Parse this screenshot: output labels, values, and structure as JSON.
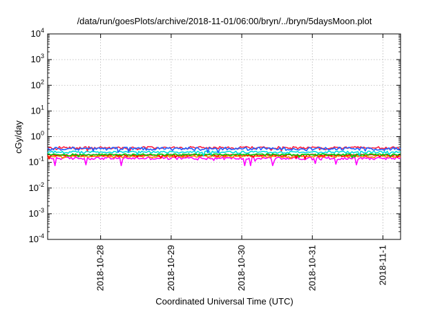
{
  "chart_data": {
    "type": "line",
    "title": "/data/run/goesPlots/archive/2018-11-01/06:00/bryn/../bryn/5daysMoon.plot",
    "xlabel": "Coordinated Universal Time (UTC)",
    "ylabel": "cGy/day",
    "yscale": "log",
    "ylim": [
      0.0001,
      10000
    ],
    "y_ticks": [
      {
        "base": "10",
        "exp": "4",
        "value": 10000
      },
      {
        "base": "10",
        "exp": "3",
        "value": 1000
      },
      {
        "base": "10",
        "exp": "2",
        "value": 100
      },
      {
        "base": "10",
        "exp": "1",
        "value": 10
      },
      {
        "base": "10",
        "exp": "0",
        "value": 1
      },
      {
        "base": "10",
        "exp": "-1",
        "value": 0.1
      },
      {
        "base": "10",
        "exp": "-2",
        "value": 0.01
      },
      {
        "base": "10",
        "exp": "-3",
        "value": 0.001
      },
      {
        "base": "10",
        "exp": "-4",
        "value": 0.0001
      }
    ],
    "xlim": [
      "2018-10-27 06:00",
      "2018-11-01 06:00"
    ],
    "x_ticks": [
      {
        "label": "2018-10-28",
        "value": "2018-10-28 00:00"
      },
      {
        "label": "2018-10-29",
        "value": "2018-10-29 00:00"
      },
      {
        "label": "2018-10-30",
        "value": "2018-10-30 00:00"
      },
      {
        "label": "2018-10-31",
        "value": "2018-10-31 00:00"
      },
      {
        "label": "2018-11-1",
        "value": "2018-11-01 00:00"
      }
    ],
    "grid": true,
    "legend": "none",
    "series": [
      {
        "color": "#ff00ff",
        "base": 0.145,
        "jitter": 0.12,
        "dips": [
          [
            "2018-10-27 08:30",
            0.075
          ],
          [
            "2018-10-27 19:00",
            0.08
          ],
          [
            "2018-10-28 07:00",
            0.075
          ],
          [
            "2018-10-30 01:00",
            0.075
          ],
          [
            "2018-10-30 03:00",
            0.075
          ],
          [
            "2018-10-30 10:30",
            0.075
          ],
          [
            "2018-10-31 01:00",
            0.09
          ],
          [
            "2018-10-31 08:00",
            0.085
          ],
          [
            "2018-10-31 15:00",
            0.08
          ]
        ]
      },
      {
        "color": "#ff8000",
        "base": 0.17,
        "jitter": 0.08,
        "dips": []
      },
      {
        "color": "#ff0000",
        "base": 0.19,
        "jitter": 0.08,
        "dips": []
      },
      {
        "color": "#00cc00",
        "base": 0.2,
        "jitter": 0.08,
        "dips": []
      },
      {
        "color": "#00dddd",
        "base": 0.25,
        "jitter": 0.1,
        "dips": []
      },
      {
        "color": "#ff2040",
        "base": 0.37,
        "jitter": 0.12,
        "dips": []
      },
      {
        "color": "#2060ff",
        "base": 0.34,
        "jitter": 0.14,
        "dips": []
      }
    ]
  }
}
